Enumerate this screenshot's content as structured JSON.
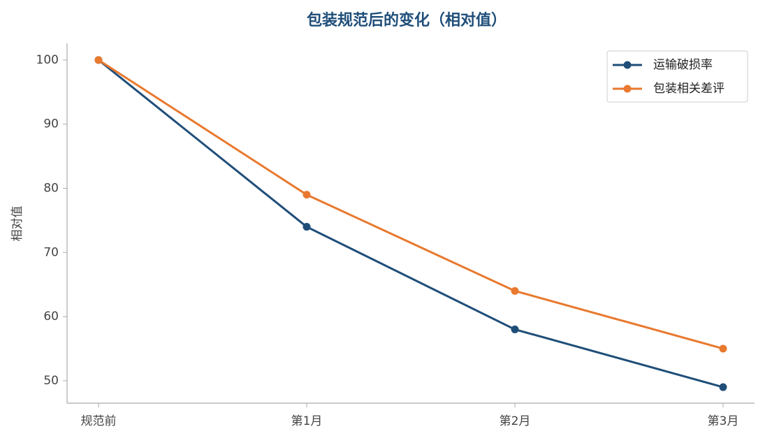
{
  "chart_data": {
    "type": "line",
    "title": "包装规范后的变化（相对值）",
    "y_label": "相对值",
    "categories": [
      "规范前",
      "第1月",
      "第2月",
      "第3月"
    ],
    "series": [
      {
        "name": "运输破损率",
        "color": "#1f4e79",
        "values": [
          100,
          74,
          58,
          49
        ]
      },
      {
        "name": "包装相关差评",
        "color": "#e8792f",
        "values": [
          100,
          79,
          64,
          55
        ]
      }
    ],
    "ylim": [
      46.5,
      102.6
    ],
    "yticks": [
      50,
      60,
      70,
      80,
      90,
      100
    ],
    "grid": false,
    "legend": "upper right"
  }
}
